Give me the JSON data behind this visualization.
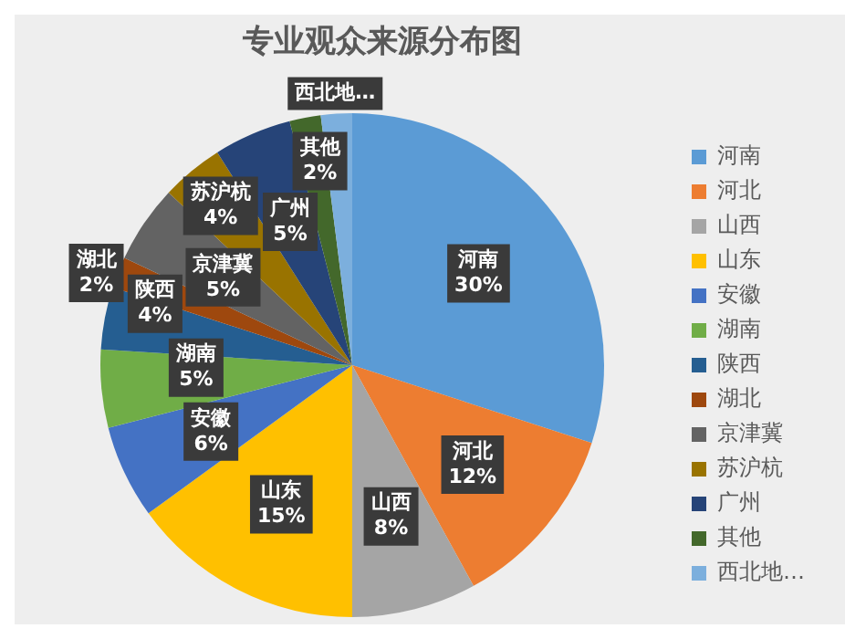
{
  "chart_data": {
    "type": "pie",
    "title": "专业观众来源分布图",
    "categories": [
      "河南",
      "河北",
      "山西",
      "山东",
      "安徽",
      "湖南",
      "陕西",
      "湖北",
      "京津冀",
      "苏沪杭",
      "广州",
      "其他",
      "西北地…"
    ],
    "values": [
      30,
      12,
      8,
      15,
      6,
      5,
      4,
      2,
      5,
      4,
      5,
      2,
      2
    ],
    "value_labels": [
      "30%",
      "12%",
      "8%",
      "15%",
      "6%",
      "5%",
      "4%",
      "2%",
      "5%",
      "4%",
      "5%",
      "2%",
      null
    ],
    "colors": [
      "#5b9bd5",
      "#ed7d31",
      "#a5a5a5",
      "#ffc000",
      "#4472c4",
      "#70ad47",
      "#255e91",
      "#9e480e",
      "#636363",
      "#997300",
      "#264478",
      "#43682b",
      "#7cafdd"
    ],
    "legend": "right"
  }
}
